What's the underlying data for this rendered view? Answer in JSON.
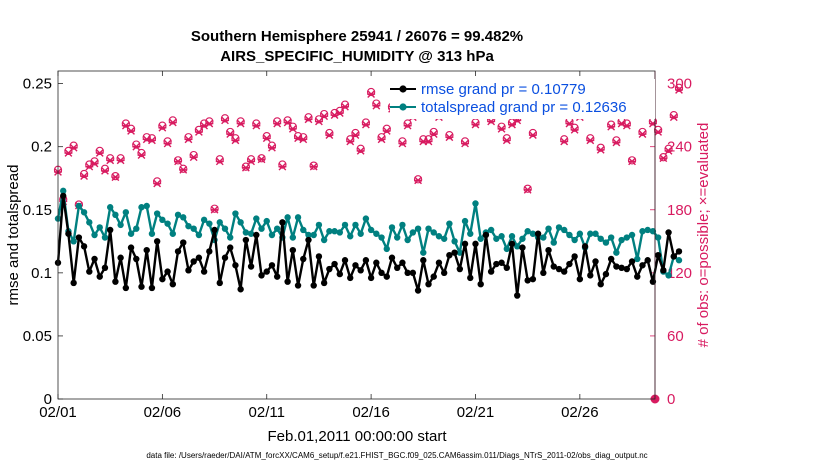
{
  "chart_data": {
    "type": "line",
    "title": "Southern Hemisphere 25941 / 26076 = 99.482%",
    "subtitle": "AIRS_SPECIFIC_HUMIDITY @ 313 hPa",
    "xlabel": "Feb.01,2011 00:00:00 start",
    "ylabel": "rmse and totalspread",
    "y2label": "# of obs: o=possible; ×=evaluated",
    "xlim": [
      0,
      28.6
    ],
    "ylim": [
      0,
      0.26
    ],
    "y2lim": [
      0,
      312
    ],
    "x_ticks": [
      0,
      5,
      10,
      15,
      20,
      25
    ],
    "x_tick_labels": [
      "02/01",
      "02/06",
      "02/11",
      "02/16",
      "02/21",
      "02/26"
    ],
    "y_ticks": [
      0,
      0.05,
      0.1,
      0.15,
      0.2,
      0.25
    ],
    "y_tick_labels": [
      "0",
      "0.05",
      "0.1",
      "0.15",
      "0.2",
      "0.25"
    ],
    "y2_ticks": [
      0,
      60,
      120,
      180,
      240,
      300
    ],
    "y2_tick_labels": [
      "0",
      "60",
      "120",
      "180",
      "240",
      "300"
    ],
    "legend_position": "top-right",
    "footer": "data file: /Users/raeder/DAI/ATM_forcXX/CAM6_setup/f.e21.FHIST_BGC.f09_025.CAM6assim.011/Diags_NTrS_2011-02/obs_diag_output.nc",
    "colors": {
      "rmse": "#000000",
      "spread": "#008080",
      "obs": "#d81b60",
      "legend_text": "#0a4fe0"
    },
    "x_step_days": 0.25,
    "series": [
      {
        "name": "rmse grand pr = 0.10779",
        "color": "#000000",
        "marker": "o",
        "values": [
          0.108,
          0.161,
          0.131,
          0.092,
          0.128,
          0.121,
          0.101,
          0.111,
          0.097,
          0.104,
          0.134,
          0.093,
          0.112,
          0.088,
          0.12,
          0.111,
          0.089,
          0.118,
          0.088,
          0.125,
          0.095,
          0.101,
          0.091,
          0.117,
          0.124,
          0.102,
          0.109,
          0.112,
          0.101,
          0.117,
          0.134,
          0.092,
          0.112,
          0.12,
          0.106,
          0.087,
          0.126,
          0.105,
          0.13,
          0.098,
          0.101,
          0.106,
          0.097,
          0.14,
          0.093,
          0.118,
          0.09,
          0.111,
          0.126,
          0.09,
          0.113,
          0.092,
          0.103,
          0.107,
          0.099,
          0.11,
          0.096,
          0.106,
          0.102,
          0.11,
          0.096,
          0.108,
          0.1,
          0.097,
          0.112,
          0.104,
          0.108,
          0.1,
          0.1,
          0.086,
          0.11,
          0.091,
          0.097,
          0.108,
          0.1,
          0.114,
          0.116,
          0.103,
          0.123,
          0.096,
          0.123,
          0.091,
          0.13,
          0.101,
          0.107,
          0.108,
          0.104,
          0.123,
          0.082,
          0.12,
          0.094,
          0.095,
          0.131,
          0.1,
          0.118,
          0.105,
          0.103,
          0.101,
          0.107,
          0.113,
          0.095,
          0.121,
          0.098,
          0.109,
          0.091,
          0.099,
          0.111,
          0.105,
          0.104,
          0.103,
          0.109,
          0.097,
          0.106,
          0.11,
          0.093,
          0.114,
          0.102,
          0.132,
          0.113,
          0.117
        ]
      },
      {
        "name": "totalspread grand pr = 0.12636",
        "color": "#008080",
        "marker": "o",
        "values": [
          0.143,
          0.165,
          0.133,
          0.125,
          0.153,
          0.148,
          0.14,
          0.13,
          0.136,
          0.128,
          0.152,
          0.146,
          0.138,
          0.148,
          0.131,
          0.135,
          0.152,
          0.153,
          0.131,
          0.147,
          0.142,
          0.139,
          0.131,
          0.146,
          0.144,
          0.137,
          0.135,
          0.13,
          0.142,
          0.139,
          0.126,
          0.14,
          0.135,
          0.128,
          0.147,
          0.14,
          0.132,
          0.131,
          0.143,
          0.135,
          0.141,
          0.13,
          0.135,
          0.128,
          0.144,
          0.128,
          0.144,
          0.134,
          0.13,
          0.13,
          0.138,
          0.126,
          0.133,
          0.133,
          0.132,
          0.138,
          0.129,
          0.138,
          0.131,
          0.143,
          0.134,
          0.131,
          0.128,
          0.119,
          0.136,
          0.128,
          0.138,
          0.126,
          0.132,
          0.135,
          0.116,
          0.135,
          0.132,
          0.129,
          0.127,
          0.139,
          0.125,
          0.116,
          0.141,
          0.131,
          0.155,
          0.127,
          0.132,
          0.134,
          0.127,
          0.129,
          0.119,
          0.129,
          0.121,
          0.127,
          0.133,
          0.131,
          0.128,
          0.128,
          0.135,
          0.124,
          0.136,
          0.134,
          0.13,
          0.126,
          0.131,
          0.12,
          0.131,
          0.131,
          0.127,
          0.124,
          0.128,
          0.116,
          0.126,
          0.128,
          0.13,
          0.111,
          0.133,
          0.134,
          0.133,
          0.128,
          0.101,
          0.098,
          0.113,
          0.11
        ]
      },
      {
        "name": "# of obs possible",
        "color": "#d81b60",
        "marker": "o",
        "axis": "right",
        "values": [
          218,
          190,
          236,
          241,
          185,
          214,
          223,
          226,
          236,
          219,
          229,
          212,
          229,
          262,
          257,
          242,
          234,
          249,
          248,
          207,
          260,
          245,
          265,
          227,
          219,
          249,
          232,
          256,
          262,
          264,
          181,
          228,
          267,
          254,
          248,
          264,
          221,
          228,
          262,
          229,
          250,
          241,
          264,
          223,
          265,
          259,
          250,
          249,
          268,
          222,
          266,
          271,
          253,
          272,
          274,
          280,
          247,
          253,
          238,
          263,
          292,
          281,
          249,
          257,
          278,
          289,
          245,
          262,
          270,
          209,
          247,
          247,
          254,
          270,
          275,
          251,
          274,
          292,
          245,
          277,
          263,
          279,
          273,
          266,
          278,
          259,
          248,
          263,
          267,
          275,
          200,
          253,
          272,
          283,
          288,
          291,
          273,
          247,
          264,
          258,
          270,
          290,
          248,
          273,
          239,
          283,
          261,
          246,
          264,
          262,
          227,
          293,
          254,
          281,
          264,
          256,
          230,
          238,
          270,
          296
        ]
      },
      {
        "name": "# of obs evaluated",
        "color": "#d81b60",
        "marker": "x",
        "axis": "right",
        "values": [
          216,
          188,
          234,
          239,
          184,
          212,
          221,
          224,
          234,
          217,
          227,
          211,
          227,
          260,
          255,
          240,
          232,
          247,
          246,
          205,
          258,
          243,
          263,
          226,
          218,
          247,
          230,
          254,
          260,
          262,
          180,
          226,
          265,
          252,
          246,
          262,
          220,
          226,
          260,
          228,
          248,
          239,
          262,
          221,
          263,
          257,
          248,
          247,
          266,
          221,
          264,
          269,
          251,
          270,
          272,
          278,
          245,
          251,
          236,
          261,
          290,
          279,
          247,
          255,
          276,
          287,
          243,
          260,
          268,
          208,
          245,
          245,
          252,
          268,
          273,
          249,
          272,
          290,
          243,
          275,
          261,
          277,
          271,
          264,
          276,
          257,
          246,
          261,
          265,
          273,
          199,
          251,
          270,
          281,
          286,
          289,
          271,
          245,
          262,
          256,
          268,
          288,
          246,
          271,
          237,
          281,
          259,
          244,
          262,
          260,
          226,
          291,
          252,
          279,
          262,
          254,
          229,
          236,
          268,
          294
        ]
      }
    ]
  }
}
